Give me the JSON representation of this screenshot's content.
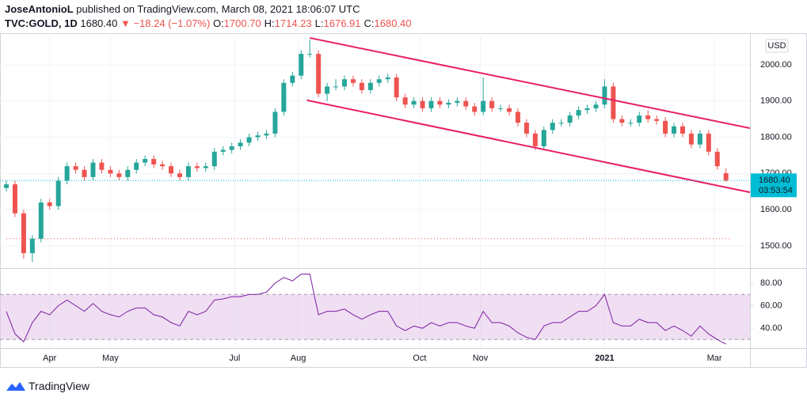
{
  "header": {
    "author": "JoseAntonioL",
    "published": "published on TradingView.com, March 08, 2021 18:06:07 UTC",
    "symbol": "TVC:GOLD, 1D",
    "last": "1680.40",
    "change": "▼ −18.24 (−1.07%)",
    "ohlc": [
      {
        "key": "O:",
        "value": "1700.70"
      },
      {
        "key": "H:",
        "value": "1714.23"
      },
      {
        "key": "L:",
        "value": "1676.91"
      },
      {
        "key": "C:",
        "value": "1680.40"
      }
    ]
  },
  "chart_data": [
    {
      "type": "candlestick",
      "currency": "USD",
      "up_color": "#26a69a",
      "down_color": "#ef5350",
      "x": [
        0,
        3,
        6,
        9,
        12,
        15,
        18,
        21,
        24,
        27,
        30,
        33,
        36,
        39,
        42,
        45,
        48,
        51,
        54,
        57,
        60,
        63,
        66,
        69,
        72,
        75,
        78,
        81,
        84,
        87,
        90,
        93,
        96,
        99,
        102,
        105,
        108,
        111,
        114,
        117,
        120,
        123,
        126,
        129,
        132,
        135,
        138,
        141,
        144,
        147,
        150,
        153,
        156,
        159,
        162,
        165,
        168,
        171,
        174,
        177,
        180,
        183,
        186,
        189,
        192,
        195,
        198,
        201,
        204,
        207,
        210,
        213,
        216,
        219,
        222,
        225,
        228,
        231,
        234,
        237,
        240,
        243,
        246,
        249
      ],
      "open": [
        1660,
        1670,
        1590,
        1480,
        1520,
        1620,
        1610,
        1680,
        1720,
        1710,
        1690,
        1730,
        1710,
        1700,
        1690,
        1710,
        1730,
        1740,
        1725,
        1720,
        1700,
        1690,
        1720,
        1715,
        1720,
        1760,
        1765,
        1775,
        1785,
        1800,
        1805,
        1810,
        1870,
        1950,
        1970,
        2030,
        2030,
        1920,
        1940,
        1940,
        1960,
        1950,
        1930,
        1950,
        1960,
        1965,
        1910,
        1890,
        1900,
        1880,
        1900,
        1890,
        1895,
        1900,
        1885,
        1870,
        1900,
        1880,
        1880,
        1870,
        1840,
        1810,
        1775,
        1820,
        1840,
        1840,
        1860,
        1875,
        1880,
        1890,
        1940,
        1850,
        1840,
        1840,
        1860,
        1850,
        1845,
        1810,
        1830,
        1810,
        1780,
        1810,
        1760,
        1700.7
      ],
      "high": [
        1680,
        1680,
        1600,
        1530,
        1630,
        1630,
        1690,
        1730,
        1730,
        1720,
        1740,
        1740,
        1720,
        1710,
        1720,
        1740,
        1750,
        1750,
        1735,
        1730,
        1710,
        1730,
        1730,
        1730,
        1770,
        1775,
        1785,
        1795,
        1810,
        1815,
        1820,
        1880,
        1960,
        1980,
        2040,
        2070,
        2040,
        1950,
        1960,
        1970,
        1970,
        1960,
        1960,
        1970,
        1975,
        1975,
        1920,
        1910,
        1910,
        1910,
        1910,
        1905,
        1910,
        1910,
        1895,
        1965,
        1910,
        1890,
        1890,
        1880,
        1850,
        1820,
        1830,
        1850,
        1850,
        1870,
        1885,
        1890,
        1900,
        1960,
        1950,
        1860,
        1850,
        1870,
        1875,
        1860,
        1855,
        1840,
        1840,
        1820,
        1820,
        1820,
        1770,
        1714.23
      ],
      "low": [
        1650,
        1580,
        1465,
        1455,
        1510,
        1600,
        1600,
        1670,
        1700,
        1680,
        1680,
        1700,
        1690,
        1680,
        1680,
        1700,
        1720,
        1715,
        1710,
        1690,
        1680,
        1680,
        1705,
        1705,
        1710,
        1750,
        1755,
        1765,
        1775,
        1790,
        1795,
        1800,
        1860,
        1940,
        1960,
        2020,
        1910,
        1900,
        1930,
        1930,
        1940,
        1920,
        1920,
        1940,
        1950,
        1900,
        1880,
        1880,
        1870,
        1870,
        1880,
        1880,
        1885,
        1875,
        1860,
        1860,
        1870,
        1870,
        1860,
        1830,
        1800,
        1765,
        1765,
        1810,
        1830,
        1830,
        1850,
        1865,
        1870,
        1880,
        1840,
        1830,
        1830,
        1830,
        1840,
        1835,
        1800,
        1800,
        1800,
        1770,
        1770,
        1750,
        1710,
        1676.91
      ],
      "close": [
        1670,
        1590,
        1480,
        1520,
        1620,
        1610,
        1680,
        1720,
        1710,
        1690,
        1730,
        1710,
        1700,
        1690,
        1710,
        1730,
        1740,
        1725,
        1720,
        1700,
        1690,
        1720,
        1715,
        1720,
        1760,
        1765,
        1775,
        1785,
        1800,
        1805,
        1810,
        1870,
        1950,
        1970,
        2030,
        2030,
        1920,
        1940,
        1940,
        1960,
        1950,
        1930,
        1950,
        1960,
        1965,
        1910,
        1890,
        1900,
        1880,
        1900,
        1890,
        1895,
        1900,
        1885,
        1870,
        1900,
        1880,
        1880,
        1870,
        1840,
        1810,
        1775,
        1820,
        1840,
        1840,
        1860,
        1875,
        1880,
        1890,
        1940,
        1850,
        1840,
        1840,
        1860,
        1850,
        1845,
        1810,
        1830,
        1810,
        1780,
        1810,
        1760,
        1720,
        1680.4
      ],
      "xlim": [
        0,
        257.3
      ],
      "ylim": [
        1441,
        2087
      ],
      "yticks": [
        {
          "value": 1500,
          "label": "1500.00"
        },
        {
          "value": 1600,
          "label": "1600.00"
        },
        {
          "value": 1700,
          "label": "1700.00"
        },
        {
          "value": 1800,
          "label": "1800.00"
        },
        {
          "value": 1900,
          "label": "1900.00"
        },
        {
          "value": 2000,
          "label": "2000.00"
        }
      ],
      "xticks": [
        {
          "value": 15,
          "label": "Apr"
        },
        {
          "value": 36,
          "label": "May"
        },
        {
          "value": 79,
          "label": "Jul"
        },
        {
          "value": 101,
          "label": "Aug"
        },
        {
          "value": 143,
          "label": "Oct"
        },
        {
          "value": 164,
          "label": "Nov"
        },
        {
          "value": 207,
          "label": "2021"
        },
        {
          "value": 245,
          "label": "Mar"
        }
      ],
      "last_price": {
        "value": 1680.4,
        "label": "1680.40",
        "countdown": "03:53:54",
        "color": "#00bcd4"
      },
      "trend_lines": [
        {
          "x": [
            105,
            257.3
          ],
          "y": [
            2074,
            1825
          ],
          "color": "#e91e63"
        },
        {
          "x": [
            104,
            257.3
          ],
          "y": [
            1902,
            1648
          ],
          "color": "#e91e63"
        }
      ],
      "level_lines": [
        {
          "y": 1520,
          "x": [
            0,
            251
          ],
          "color": "#ef5350"
        }
      ]
    },
    {
      "type": "line",
      "color": "#7b1fa2",
      "band": [
        30,
        70
      ],
      "band_color": "#e1bee7",
      "x": [
        0,
        3,
        6,
        9,
        12,
        15,
        18,
        21,
        24,
        27,
        30,
        33,
        36,
        39,
        42,
        45,
        48,
        51,
        54,
        57,
        60,
        63,
        66,
        69,
        72,
        75,
        78,
        81,
        84,
        87,
        90,
        93,
        96,
        99,
        102,
        105,
        108,
        111,
        114,
        117,
        120,
        123,
        126,
        129,
        132,
        135,
        138,
        141,
        144,
        147,
        150,
        153,
        156,
        159,
        162,
        165,
        168,
        171,
        174,
        177,
        180,
        183,
        186,
        189,
        192,
        195,
        198,
        201,
        204,
        207,
        210,
        213,
        216,
        219,
        222,
        225,
        228,
        231,
        234,
        237,
        240,
        243,
        246,
        249
      ],
      "values": [
        55,
        35,
        28,
        45,
        55,
        52,
        60,
        65,
        60,
        55,
        62,
        55,
        52,
        50,
        55,
        58,
        58,
        52,
        50,
        45,
        42,
        55,
        52,
        55,
        65,
        66,
        68,
        68,
        70,
        70,
        72,
        80,
        85,
        82,
        88,
        88,
        52,
        55,
        55,
        57,
        52,
        48,
        52,
        55,
        55,
        42,
        38,
        42,
        40,
        45,
        42,
        45,
        45,
        42,
        40,
        55,
        45,
        45,
        42,
        36,
        32,
        30,
        42,
        45,
        45,
        50,
        55,
        55,
        60,
        70,
        45,
        42,
        42,
        48,
        45,
        45,
        38,
        42,
        38,
        33,
        42,
        35,
        30,
        26
      ],
      "xlim": [
        0,
        257.3
      ],
      "ylim": [
        22.5,
        92.6
      ],
      "yticks": [
        {
          "value": 40,
          "label": "40.00"
        },
        {
          "value": 60,
          "label": "60.00"
        },
        {
          "value": 80,
          "label": "80.00"
        }
      ]
    }
  ],
  "footer": {
    "brand": "TradingView"
  }
}
